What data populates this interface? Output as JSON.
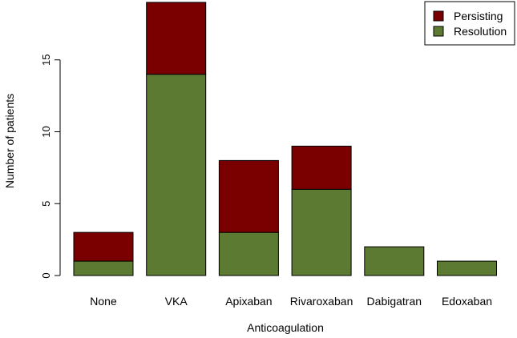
{
  "chart_data": {
    "type": "bar",
    "stacked": true,
    "categories": [
      "None",
      "VKA",
      "Apixaban",
      "Rivaroxaban",
      "Dabigatran",
      "Edoxaban"
    ],
    "series": [
      {
        "name": "Resolution",
        "color": "#5c7a32",
        "values": [
          1,
          14,
          3,
          6,
          2,
          1
        ]
      },
      {
        "name": "Persisting",
        "color": "#7a0000",
        "values": [
          2,
          5,
          5,
          3,
          0,
          0
        ]
      }
    ],
    "xlabel": "Anticoagulation",
    "ylabel": "Number of patients",
    "ylim": [
      0,
      19
    ],
    "yticks": [
      0,
      5,
      10,
      15
    ],
    "grid": false,
    "legend": {
      "placement": "top-right",
      "entries": [
        {
          "name": "Persisting",
          "color": "#7a0000"
        },
        {
          "name": "Resolution",
          "color": "#5c7a32"
        }
      ]
    }
  }
}
